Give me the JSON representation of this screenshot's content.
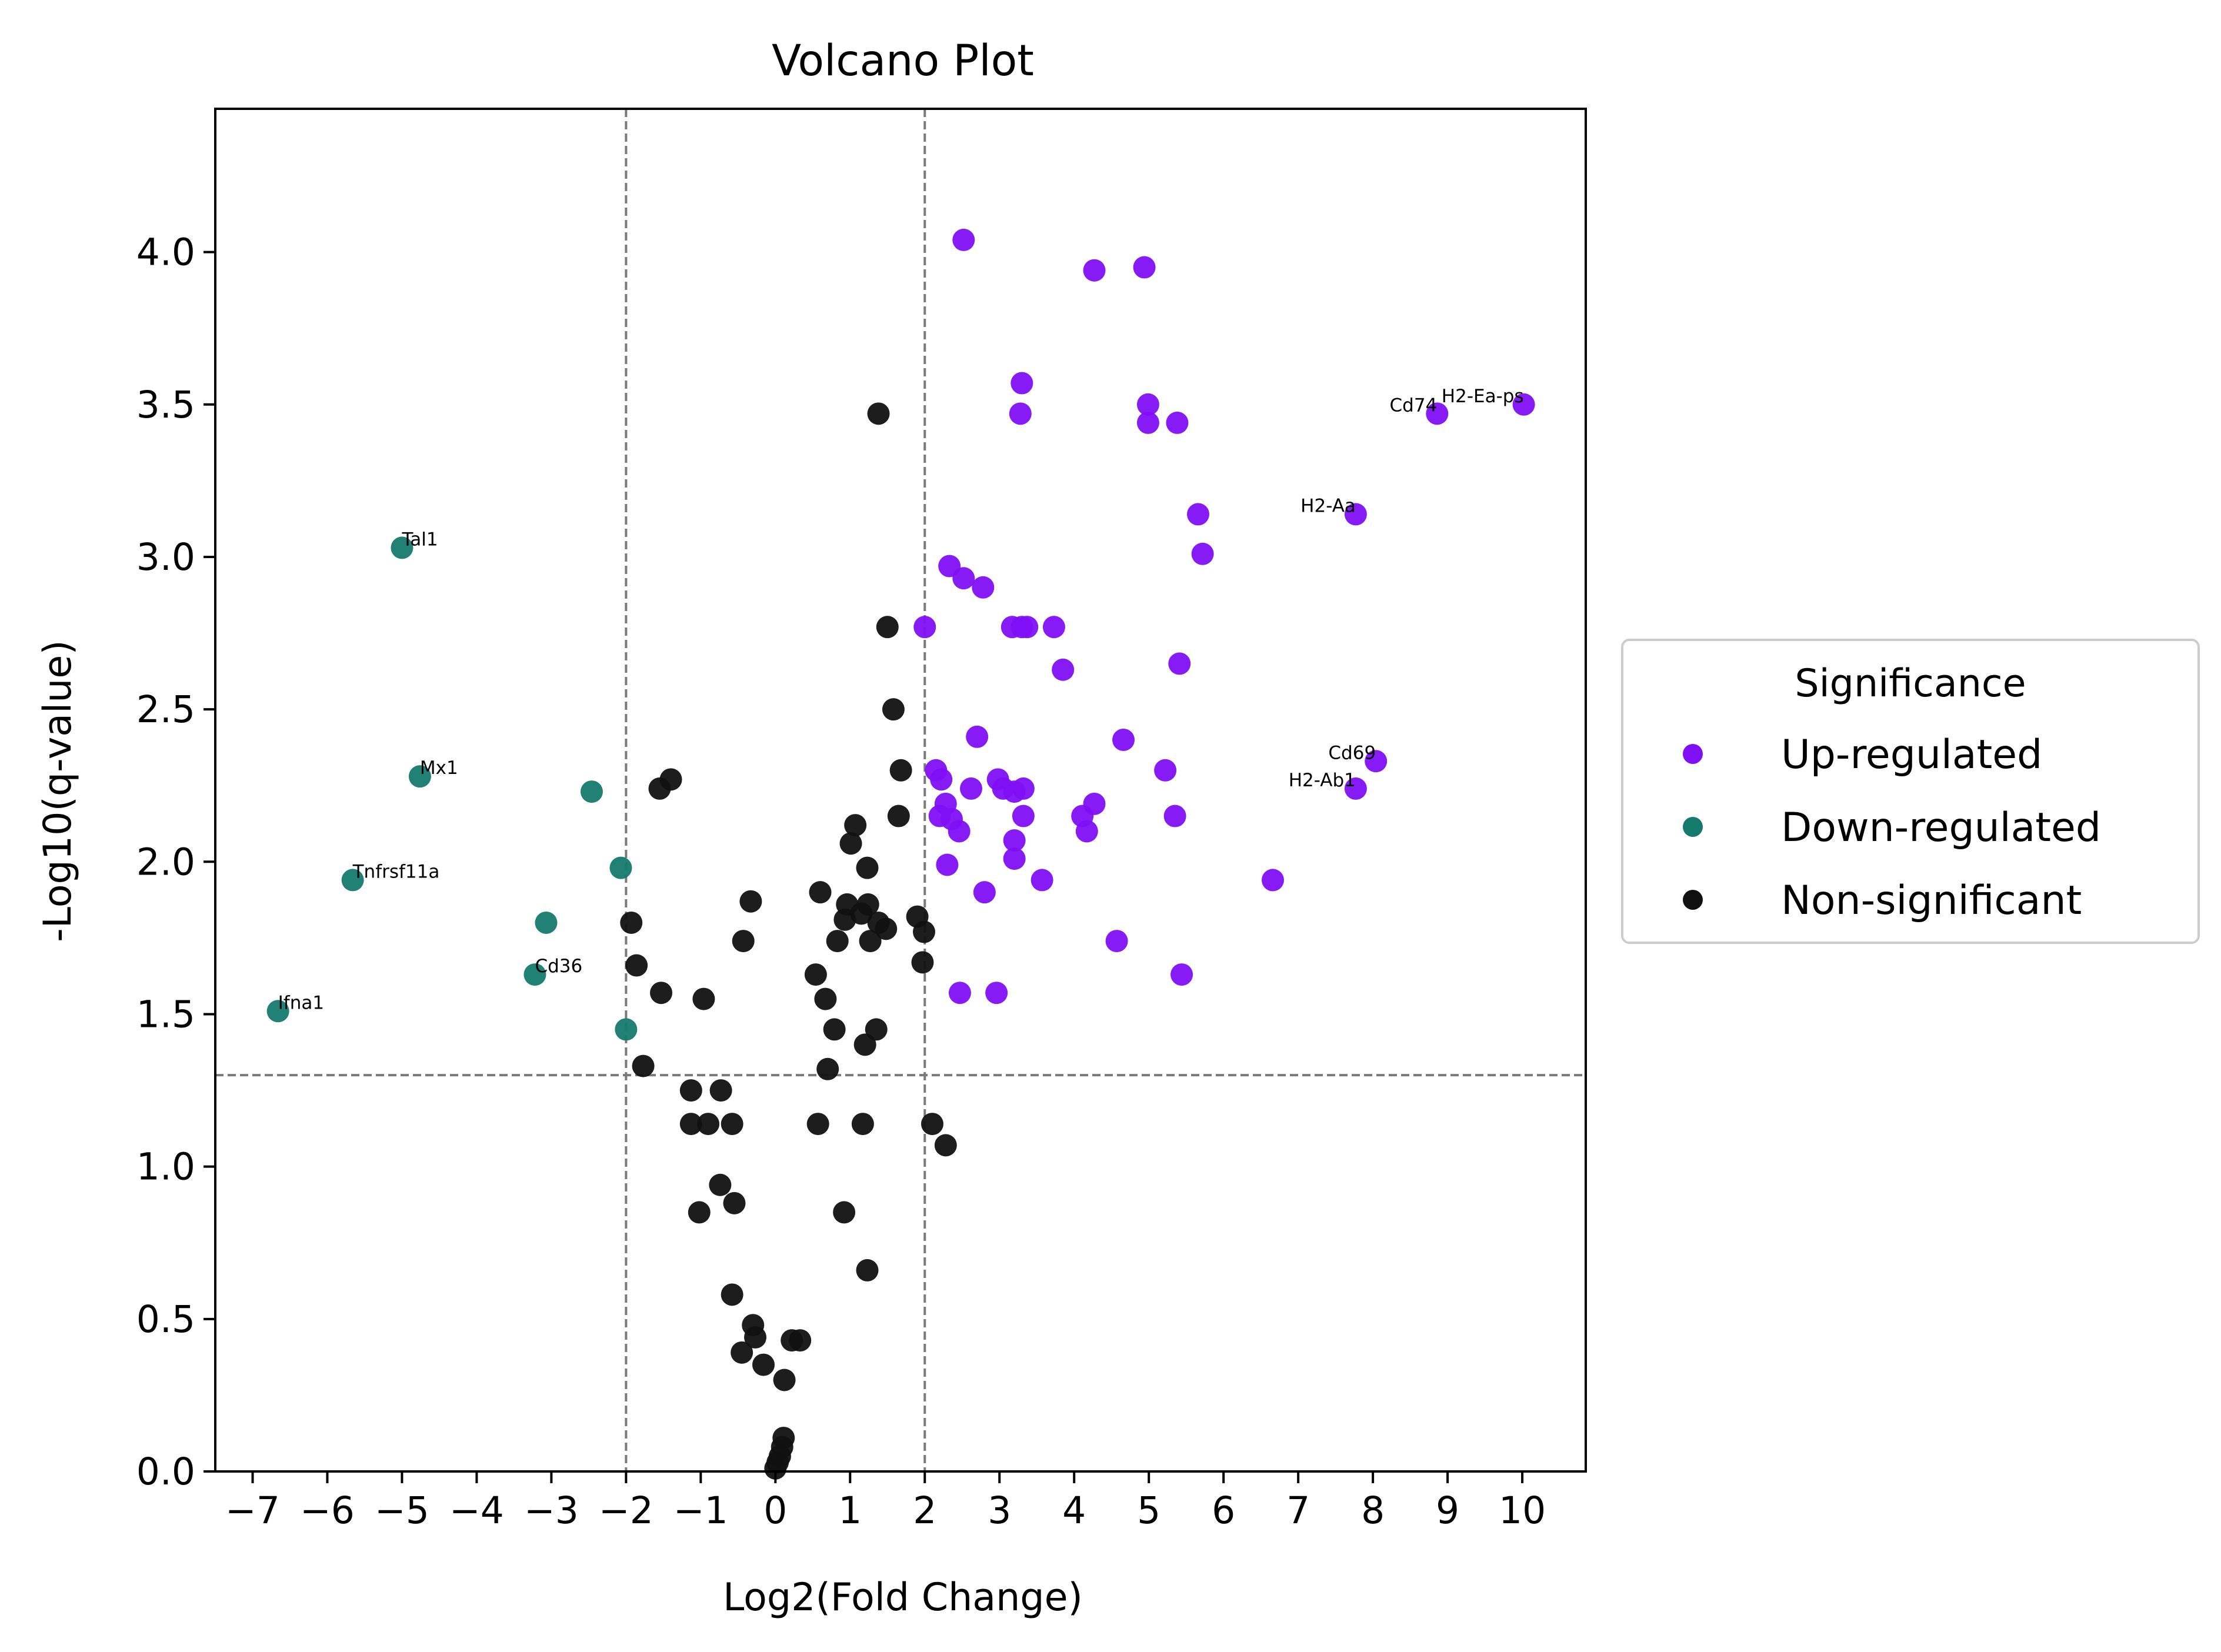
{
  "chart_data": {
    "type": "scatter",
    "title": "Volcano Plot",
    "xlabel": "Log2(Fold Change)",
    "ylabel": "-Log10(q-value)",
    "xlim": [
      -7.5,
      10.85
    ],
    "ylim": [
      0,
      4.47
    ],
    "xticks": [
      -7,
      -6,
      -5,
      -4,
      -3,
      -2,
      -1,
      0,
      1,
      2,
      3,
      4,
      5,
      6,
      7,
      8,
      9,
      10
    ],
    "yticks": [
      0.0,
      0.5,
      1.0,
      1.5,
      2.0,
      2.5,
      3.0,
      3.5,
      4.0
    ],
    "thresholds": {
      "x": [
        -2,
        2
      ],
      "y": 1.3
    },
    "grid": false,
    "legend": {
      "title": "Significance",
      "position": "center-right"
    },
    "series": [
      {
        "name": "Up-regulated",
        "color": "#7f0ff5",
        "points": [
          [
            2.52,
            4.04
          ],
          [
            4.27,
            3.94
          ],
          [
            4.94,
            3.95
          ],
          [
            3.3,
            3.57
          ],
          [
            3.28,
            3.47
          ],
          [
            4.99,
            3.5
          ],
          [
            4.99,
            3.44
          ],
          [
            5.38,
            3.44
          ],
          [
            10.02,
            3.5
          ],
          [
            8.86,
            3.47
          ],
          [
            5.66,
            3.14
          ],
          [
            7.77,
            3.14
          ],
          [
            5.72,
            3.01
          ],
          [
            2.33,
            2.97
          ],
          [
            2.52,
            2.93
          ],
          [
            2.78,
            2.9
          ],
          [
            2.0,
            2.77
          ],
          [
            3.17,
            2.77
          ],
          [
            3.3,
            2.77
          ],
          [
            3.37,
            2.77
          ],
          [
            3.73,
            2.77
          ],
          [
            3.85,
            2.63
          ],
          [
            5.41,
            2.65
          ],
          [
            2.7,
            2.41
          ],
          [
            4.66,
            2.4
          ],
          [
            8.04,
            2.33
          ],
          [
            5.22,
            2.3
          ],
          [
            2.15,
            2.3
          ],
          [
            2.22,
            2.27
          ],
          [
            2.98,
            2.27
          ],
          [
            2.62,
            2.24
          ],
          [
            3.05,
            2.24
          ],
          [
            3.2,
            2.23
          ],
          [
            3.32,
            2.24
          ],
          [
            7.77,
            2.24
          ],
          [
            2.28,
            2.19
          ],
          [
            4.27,
            2.19
          ],
          [
            2.2,
            2.15
          ],
          [
            2.36,
            2.14
          ],
          [
            3.32,
            2.15
          ],
          [
            4.11,
            2.15
          ],
          [
            5.35,
            2.15
          ],
          [
            2.46,
            2.1
          ],
          [
            4.17,
            2.1
          ],
          [
            3.2,
            2.07
          ],
          [
            3.2,
            2.01
          ],
          [
            2.3,
            1.99
          ],
          [
            3.57,
            1.94
          ],
          [
            6.66,
            1.94
          ],
          [
            2.8,
            1.9
          ],
          [
            4.57,
            1.74
          ],
          [
            5.44,
            1.63
          ],
          [
            2.47,
            1.57
          ],
          [
            2.96,
            1.57
          ]
        ]
      },
      {
        "name": "Down-regulated",
        "color": "#157a6e",
        "points": [
          [
            -5.0,
            3.03
          ],
          [
            -4.76,
            2.28
          ],
          [
            -2.46,
            2.23
          ],
          [
            -2.07,
            1.98
          ],
          [
            -5.66,
            1.94
          ],
          [
            -3.07,
            1.8
          ],
          [
            -3.22,
            1.63
          ],
          [
            -2.0,
            1.45
          ],
          [
            -6.66,
            1.51
          ]
        ]
      },
      {
        "name": "Non-significant",
        "color": "#111111",
        "points": [
          [
            1.38,
            3.47
          ],
          [
            1.5,
            2.77
          ],
          [
            1.58,
            2.5
          ],
          [
            1.68,
            2.3
          ],
          [
            -1.55,
            2.24
          ],
          [
            -1.4,
            2.27
          ],
          [
            1.65,
            2.15
          ],
          [
            1.07,
            2.12
          ],
          [
            1.01,
            2.06
          ],
          [
            1.23,
            1.98
          ],
          [
            0.6,
            1.9
          ],
          [
            -0.33,
            1.87
          ],
          [
            0.96,
            1.86
          ],
          [
            1.24,
            1.86
          ],
          [
            1.15,
            1.83
          ],
          [
            0.93,
            1.81
          ],
          [
            1.9,
            1.82
          ],
          [
            1.38,
            1.8
          ],
          [
            1.48,
            1.78
          ],
          [
            1.99,
            1.77
          ],
          [
            -1.93,
            1.8
          ],
          [
            -0.43,
            1.74
          ],
          [
            0.83,
            1.74
          ],
          [
            1.27,
            1.74
          ],
          [
            -1.86,
            1.66
          ],
          [
            1.97,
            1.67
          ],
          [
            0.54,
            1.63
          ],
          [
            -1.53,
            1.57
          ],
          [
            0.67,
            1.55
          ],
          [
            -0.96,
            1.55
          ],
          [
            0.79,
            1.45
          ],
          [
            1.35,
            1.45
          ],
          [
            1.2,
            1.4
          ],
          [
            -1.77,
            1.33
          ],
          [
            0.7,
            1.32
          ],
          [
            -1.13,
            1.25
          ],
          [
            -0.73,
            1.25
          ],
          [
            2.1,
            1.14
          ],
          [
            -1.13,
            1.14
          ],
          [
            -0.9,
            1.14
          ],
          [
            -0.58,
            1.14
          ],
          [
            0.57,
            1.14
          ],
          [
            1.17,
            1.14
          ],
          [
            2.28,
            1.07
          ],
          [
            -0.74,
            0.94
          ],
          [
            -0.55,
            0.88
          ],
          [
            -1.02,
            0.85
          ],
          [
            0.92,
            0.85
          ],
          [
            1.23,
            0.66
          ],
          [
            -0.58,
            0.58
          ],
          [
            -0.3,
            0.48
          ],
          [
            -0.27,
            0.44
          ],
          [
            -0.45,
            0.39
          ],
          [
            -0.16,
            0.35
          ],
          [
            0.22,
            0.43
          ],
          [
            0.33,
            0.43
          ],
          [
            0.12,
            0.3
          ],
          [
            0.11,
            0.11
          ],
          [
            0.09,
            0.08
          ],
          [
            0.06,
            0.05
          ],
          [
            0.03,
            0.03
          ],
          [
            0.0,
            0.01
          ]
        ]
      }
    ],
    "annotations": [
      {
        "text": "H2-Ea-ps",
        "x": 10.02,
        "y": 3.5
      },
      {
        "text": "Cd74",
        "x": 8.86,
        "y": 3.47
      },
      {
        "text": "H2-Aa",
        "x": 7.77,
        "y": 3.14
      },
      {
        "text": "Cd69",
        "x": 8.04,
        "y": 2.33
      },
      {
        "text": "H2-Ab1",
        "x": 7.77,
        "y": 2.24
      },
      {
        "text": "Tal1",
        "x": -5.0,
        "y": 3.03
      },
      {
        "text": "Mx1",
        "x": -4.76,
        "y": 2.28
      },
      {
        "text": "Tnfrsf11a",
        "x": -5.66,
        "y": 1.94
      },
      {
        "text": "Cd36",
        "x": -3.22,
        "y": 1.63
      },
      {
        "text": "Ifna1",
        "x": -6.66,
        "y": 1.51
      }
    ]
  }
}
